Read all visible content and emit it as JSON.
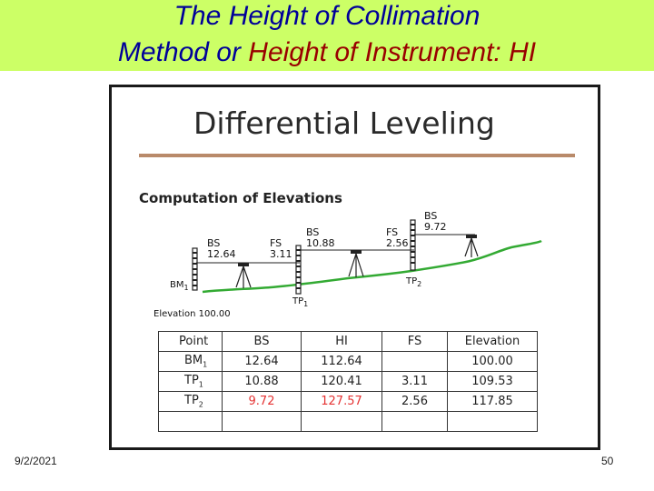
{
  "slide": {
    "title_line1": "The Height of Collimation",
    "title_line2_part1": "Method or ",
    "title_line2_part2": "Height of Instrument: HI",
    "date": "9/2/2021",
    "page_number": "50"
  },
  "figure": {
    "title": "Differential Leveling",
    "subtitle": "Computation of Elevations",
    "labels": {
      "bs1": "BS",
      "bs1_val": "12.64",
      "fs1": "FS",
      "fs1_val": "3.11",
      "bs2": "BS",
      "bs2_val": "10.88",
      "fs2": "FS",
      "fs2_val": "2.56",
      "bs3": "BS",
      "bs3_val": "9.72",
      "bm1": "BM",
      "bm1_sub": "1",
      "tp1": "TP",
      "tp1_sub": "1",
      "tp2": "TP",
      "tp2_sub": "2",
      "elevation": "Elevation 100.00"
    },
    "table": {
      "headers": [
        "Point",
        "BS",
        "HI",
        "FS",
        "Elevation"
      ],
      "rows": [
        {
          "point": "BM",
          "point_sub": "1",
          "bs": "12.64",
          "hi": "112.64",
          "fs": "",
          "elev": "100.00"
        },
        {
          "point": "TP",
          "point_sub": "1",
          "bs": "10.88",
          "hi": "120.41",
          "fs": "3.11",
          "elev": "109.53"
        },
        {
          "point": "TP",
          "point_sub": "2",
          "bs": "9.72",
          "hi": "127.57",
          "fs": "2.56",
          "elev": "117.85"
        },
        {
          "point": "",
          "point_sub": "",
          "bs": "",
          "hi": "",
          "fs": "",
          "elev": ""
        }
      ]
    },
    "colors": {
      "ground": "#33aa33",
      "rule": "#b98a6a",
      "highlight": "#e53333"
    }
  }
}
